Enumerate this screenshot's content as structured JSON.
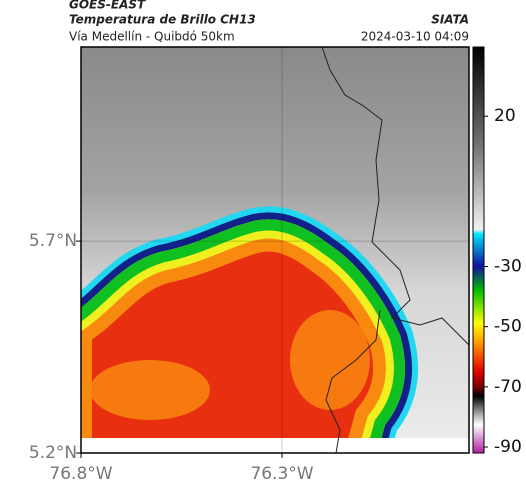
{
  "header": {
    "title": "GOES-EAST",
    "subtitle": "Temperatura de Brillo CH13",
    "source": "SIATA",
    "route": "Vía Medellín - Quibdó 50km",
    "timestamp": "2024-03-10 04:09"
  },
  "map": {
    "xlim": [
      -76.8,
      -75.835
    ],
    "ylim": [
      5.2,
      6.158
    ],
    "xticks": [
      {
        "value": -76.8,
        "label": "76.8°W"
      },
      {
        "value": -76.3,
        "label": "76.3°W"
      }
    ],
    "yticks": [
      {
        "value": 5.2,
        "label": "5.2°N"
      },
      {
        "value": 5.7,
        "label": "5.7°N"
      }
    ],
    "grid": true
  },
  "colorbar": {
    "clim": [
      -92,
      43
    ],
    "ticks": [
      20,
      -30,
      -50,
      -70,
      -90
    ]
  }
}
